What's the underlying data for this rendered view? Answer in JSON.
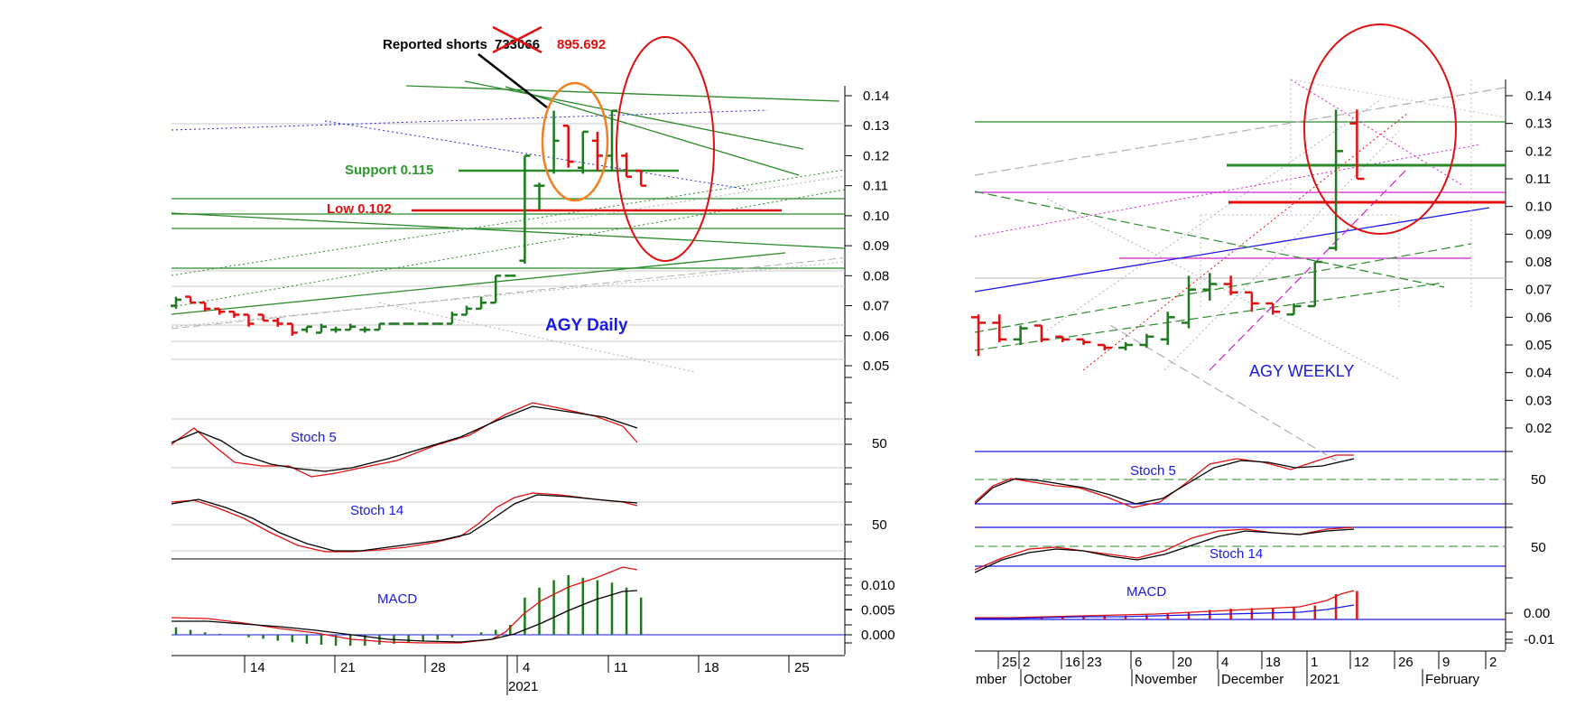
{
  "daily": {
    "title": "AGY Daily",
    "annotation_shorts_prefix": "Reported shorts",
    "annotation_shorts_old": "733066",
    "annotation_shorts_new": "895.692",
    "support_label": "Support 0.115",
    "low_label": "Low 0.102",
    "stoch5_label": "Stoch 5",
    "stoch14_label": "Stoch 14",
    "macd_label": "MACD",
    "stoch5_tick": "50",
    "stoch14_tick": "50",
    "x_year": "2021"
  },
  "weekly": {
    "title": "AGY WEEKLY",
    "stoch5_label": "Stoch 5",
    "stoch14_label": "Stoch 14",
    "macd_label": "MACD",
    "stoch5_tick": "50",
    "stoch14_tick": "50"
  },
  "colors": {
    "up": "#1f7a1f",
    "down": "#e01010",
    "signal": "#e01010",
    "main": "#000000",
    "line_blue": "#1a1ae6",
    "annotation_red": "#e01010",
    "highlight_orange": "#f08020"
  },
  "chart_data": [
    {
      "type": "bar",
      "name_text": "AGY Daily",
      "price_axis": {
        "ylim": [
          0.05,
          0.14
        ],
        "ticks": [
          "0.14",
          "0.13",
          "0.12",
          "0.11",
          "0.10",
          "0.09",
          "0.08",
          "0.07",
          "0.06",
          "0.05"
        ]
      },
      "macd_axis": {
        "ticks": [
          "0.010",
          "0.005",
          "0.000"
        ]
      },
      "x_ticks": [
        "14",
        "21",
        "28",
        "4",
        "11",
        "18",
        "25"
      ],
      "x_year": "2021",
      "ohlc": [
        {
          "o": 0.07,
          "h": 0.073,
          "l": 0.069,
          "c": 0.072
        },
        {
          "o": 0.073,
          "h": 0.073,
          "l": 0.071,
          "c": 0.071
        },
        {
          "o": 0.071,
          "h": 0.071,
          "l": 0.068,
          "c": 0.069
        },
        {
          "o": 0.069,
          "h": 0.069,
          "l": 0.067,
          "c": 0.068
        },
        {
          "o": 0.068,
          "h": 0.068,
          "l": 0.066,
          "c": 0.067
        },
        {
          "o": 0.067,
          "h": 0.067,
          "l": 0.063,
          "c": 0.064
        },
        {
          "o": 0.067,
          "h": 0.067,
          "l": 0.065,
          "c": 0.065
        },
        {
          "o": 0.065,
          "h": 0.066,
          "l": 0.063,
          "c": 0.064
        },
        {
          "o": 0.064,
          "h": 0.064,
          "l": 0.06,
          "c": 0.061
        },
        {
          "o": 0.062,
          "h": 0.063,
          "l": 0.061,
          "c": 0.063
        },
        {
          "o": 0.061,
          "h": 0.064,
          "l": 0.061,
          "c": 0.063
        },
        {
          "o": 0.062,
          "h": 0.063,
          "l": 0.061,
          "c": 0.062
        },
        {
          "o": 0.062,
          "h": 0.064,
          "l": 0.062,
          "c": 0.063
        },
        {
          "o": 0.062,
          "h": 0.063,
          "l": 0.061,
          "c": 0.062
        },
        {
          "o": 0.062,
          "h": 0.064,
          "l": 0.062,
          "c": 0.064
        },
        {
          "o": 0.064,
          "h": 0.064,
          "l": 0.064,
          "c": 0.064
        },
        {
          "o": 0.064,
          "h": 0.064,
          "l": 0.064,
          "c": 0.064
        },
        {
          "o": 0.064,
          "h": 0.064,
          "l": 0.064,
          "c": 0.064
        },
        {
          "o": 0.064,
          "h": 0.064,
          "l": 0.064,
          "c": 0.064
        },
        {
          "o": 0.064,
          "h": 0.068,
          "l": 0.064,
          "c": 0.067
        },
        {
          "o": 0.067,
          "h": 0.07,
          "l": 0.067,
          "c": 0.069
        },
        {
          "o": 0.069,
          "h": 0.073,
          "l": 0.069,
          "c": 0.071
        },
        {
          "o": 0.071,
          "h": 0.08,
          "l": 0.071,
          "c": 0.08
        },
        {
          "o": 0.08,
          "h": 0.08,
          "l": 0.08,
          "c": 0.08
        },
        {
          "o": 0.085,
          "h": 0.12,
          "l": 0.084,
          "c": 0.12
        },
        {
          "o": 0.11,
          "h": 0.111,
          "l": 0.102,
          "c": 0.11
        },
        {
          "o": 0.115,
          "h": 0.135,
          "l": 0.114,
          "c": 0.125
        },
        {
          "o": 0.13,
          "h": 0.13,
          "l": 0.116,
          "c": 0.118
        },
        {
          "o": 0.116,
          "h": 0.128,
          "l": 0.114,
          "c": 0.128
        },
        {
          "o": 0.125,
          "h": 0.128,
          "l": 0.115,
          "c": 0.12
        },
        {
          "o": 0.12,
          "h": 0.135,
          "l": 0.115,
          "c": 0.135
        },
        {
          "o": 0.12,
          "h": 0.121,
          "l": 0.113,
          "c": 0.113
        },
        {
          "o": 0.115,
          "h": 0.115,
          "l": 0.11,
          "c": 0.11
        }
      ],
      "support": 0.115,
      "low": 0.102,
      "macd_histogram": [
        0.0015,
        0.001,
        0.0005,
        0.0002,
        0,
        -0.0005,
        -0.0008,
        -0.0012,
        -0.0015,
        -0.0018,
        -0.002,
        -0.0022,
        -0.0022,
        -0.0022,
        -0.002,
        -0.0018,
        -0.0015,
        -0.0012,
        -0.001,
        -0.0005,
        0,
        0.0005,
        0.001,
        0.002,
        0.0075,
        0.0095,
        0.011,
        0.012,
        0.0115,
        0.011,
        0.0105,
        0.0095,
        0.0075
      ],
      "stochastics": [
        "Stoch 5",
        "Stoch 14"
      ]
    },
    {
      "type": "bar",
      "name_text": "AGY WEEKLY",
      "price_axis": {
        "ylim": [
          0.02,
          0.14
        ],
        "ticks": [
          "0.14",
          "0.13",
          "0.12",
          "0.11",
          "0.10",
          "0.09",
          "0.08",
          "0.07",
          "0.06",
          "0.05",
          "0.04",
          "0.03",
          "0.02"
        ]
      },
      "macd_axis": {
        "ticks": [
          "0.00",
          "-0.01"
        ]
      },
      "x_ticks_top": [
        "25",
        "2",
        "16",
        "23",
        "6",
        "20",
        "4",
        "18",
        "1",
        "12",
        "26",
        "9",
        "2"
      ],
      "x_months": [
        "mber",
        "October",
        "November",
        "December",
        "2021",
        "February"
      ],
      "ohlc": [
        {
          "o": 0.06,
          "h": 0.061,
          "l": 0.046,
          "c": 0.058
        },
        {
          "o": 0.058,
          "h": 0.061,
          "l": 0.051,
          "c": 0.052
        },
        {
          "o": 0.052,
          "h": 0.057,
          "l": 0.05,
          "c": 0.056
        },
        {
          "o": 0.057,
          "h": 0.057,
          "l": 0.051,
          "c": 0.052
        },
        {
          "o": 0.053,
          "h": 0.053,
          "l": 0.051,
          "c": 0.052
        },
        {
          "o": 0.052,
          "h": 0.052,
          "l": 0.05,
          "c": 0.051
        },
        {
          "o": 0.05,
          "h": 0.05,
          "l": 0.048,
          "c": 0.049
        },
        {
          "o": 0.049,
          "h": 0.051,
          "l": 0.048,
          "c": 0.05
        },
        {
          "o": 0.05,
          "h": 0.054,
          "l": 0.049,
          "c": 0.053
        },
        {
          "o": 0.052,
          "h": 0.062,
          "l": 0.05,
          "c": 0.06
        },
        {
          "o": 0.058,
          "h": 0.075,
          "l": 0.056,
          "c": 0.07
        },
        {
          "o": 0.07,
          "h": 0.076,
          "l": 0.066,
          "c": 0.072
        },
        {
          "o": 0.072,
          "h": 0.075,
          "l": 0.068,
          "c": 0.069
        },
        {
          "o": 0.069,
          "h": 0.069,
          "l": 0.062,
          "c": 0.065
        },
        {
          "o": 0.065,
          "h": 0.065,
          "l": 0.061,
          "c": 0.062
        },
        {
          "o": 0.061,
          "h": 0.065,
          "l": 0.061,
          "c": 0.064
        },
        {
          "o": 0.064,
          "h": 0.08,
          "l": 0.064,
          "c": 0.08
        },
        {
          "o": 0.085,
          "h": 0.135,
          "l": 0.084,
          "c": 0.12
        },
        {
          "o": 0.13,
          "h": 0.135,
          "l": 0.11,
          "c": 0.11
        }
      ],
      "macd_histogram": [
        0.0,
        0.0,
        0.0002,
        0.0003,
        0.0004,
        0.0005,
        0.0006,
        0.0006,
        0.0007,
        0.0009,
        0.0012,
        0.0015,
        0.0017,
        0.0018,
        0.0018,
        0.002,
        0.0022,
        0.004,
        0.0045
      ],
      "stochastics": [
        "Stoch 5",
        "Stoch 14"
      ]
    }
  ]
}
